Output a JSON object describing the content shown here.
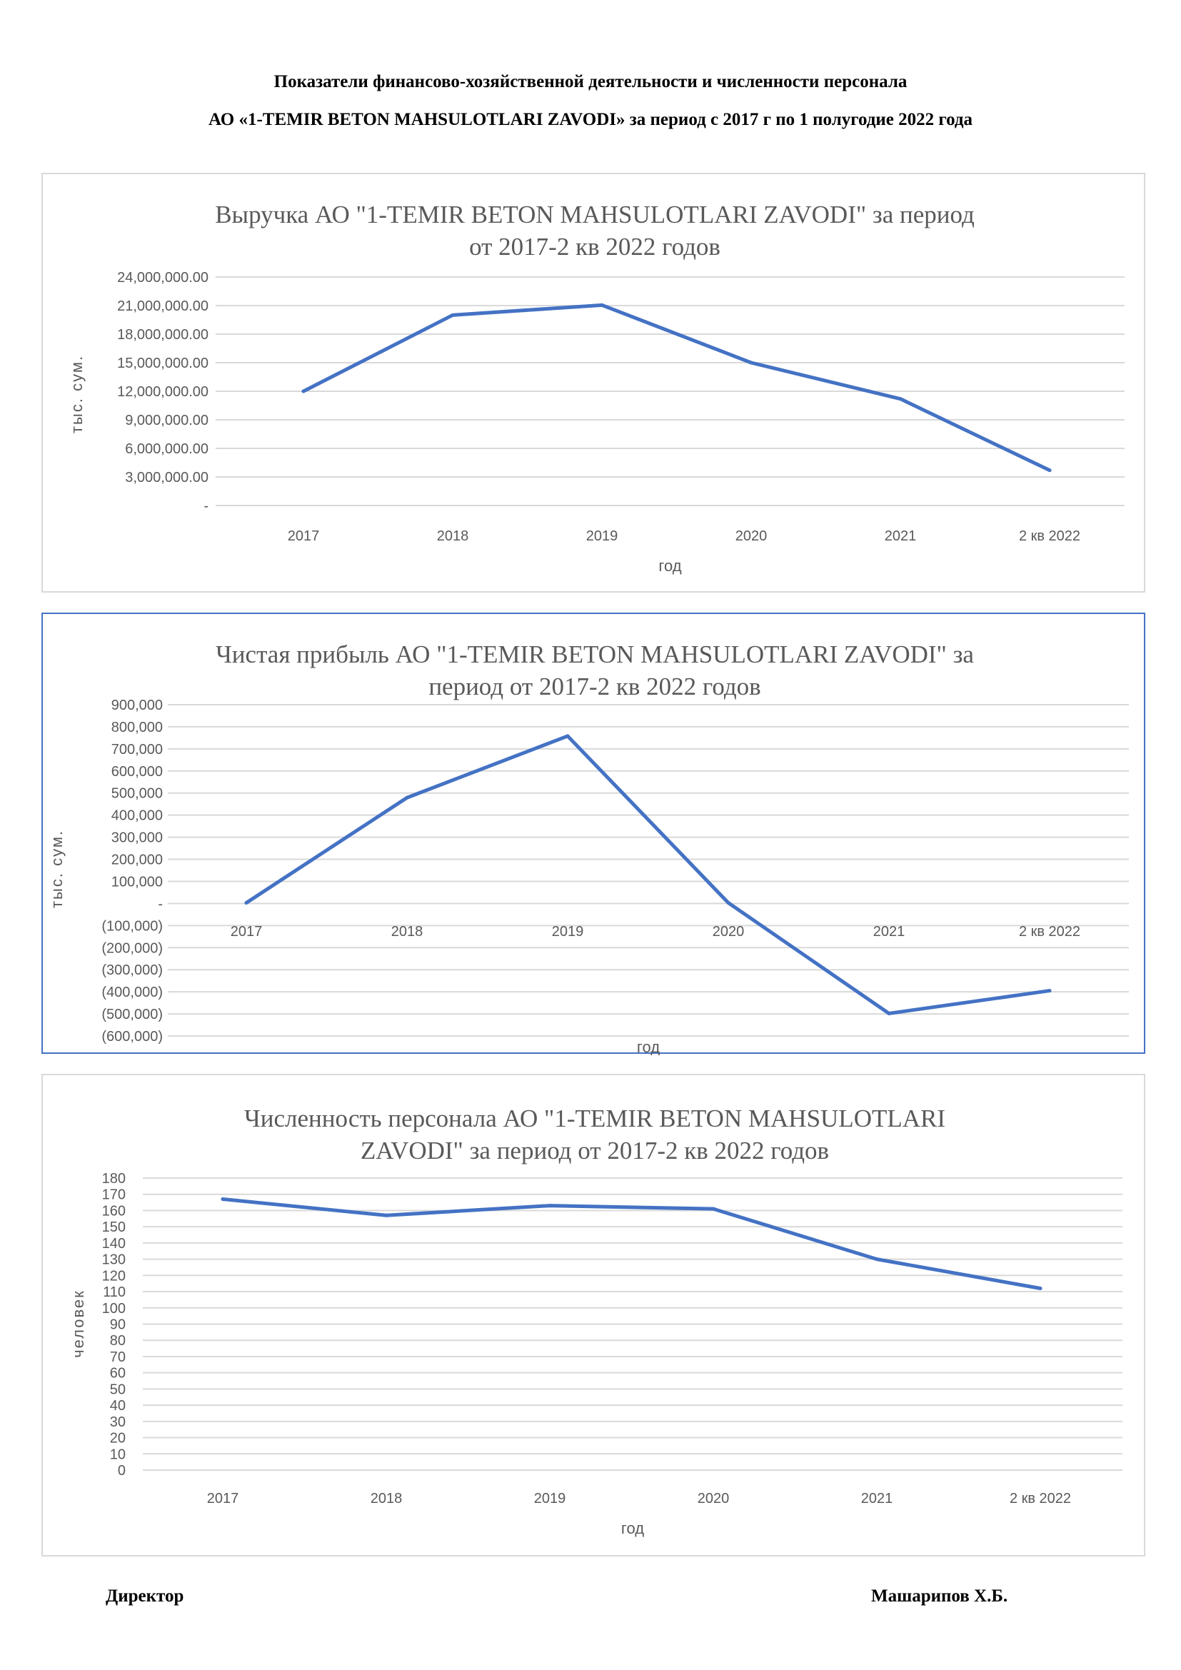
{
  "header": {
    "line1": "Показатели финансово-хозяйственной деятельности и численности персонала",
    "line2": "АО «1-TEMIR BETON MAHSULOTLARI ZAVODI» за период с 2017 г по 1 полугодие 2022 года"
  },
  "chart_data": [
    {
      "type": "line",
      "title": [
        "Выручка АО \"1-TEMIR BETON MAHSULOTLARI ZAVODI\" за период",
        "от 2017-2 кв 2022 годов"
      ],
      "xlabel": "год",
      "ylabel": "тыс. сум.",
      "categories": [
        "2017",
        "2018",
        "2019",
        "2020",
        "2021",
        "2 кв 2022"
      ],
      "series": [
        {
          "name": "Выручка",
          "values": [
            12000000,
            20000000,
            21050000,
            15000000,
            11200000,
            3700000
          ]
        }
      ],
      "ylim": [
        0,
        24000000
      ],
      "yticks": [
        0,
        3000000,
        6000000,
        9000000,
        12000000,
        15000000,
        18000000,
        21000000,
        24000000
      ],
      "ytick_labels": [
        "-",
        "3,000,000.00",
        "6,000,000.00",
        "9,000,000.00",
        "12,000,000.00",
        "15,000,000.00",
        "18,000,000.00",
        "21,000,000.00",
        "24,000,000.00"
      ],
      "grid": true,
      "line_color": "#4472c4"
    },
    {
      "type": "line",
      "title": [
        "Чистая прибыль АО \"1-TEMIR BETON MAHSULOTLARI ZAVODI\" за",
        "период от 2017-2 кв 2022 годов"
      ],
      "xlabel": "год",
      "ylabel": "тыс. сум.",
      "categories": [
        "2017",
        "2018",
        "2019",
        "2020",
        "2021",
        "2 кв 2022"
      ],
      "series": [
        {
          "name": "Чистая прибыль",
          "values": [
            3000,
            479000,
            758000,
            3000,
            -498000,
            -395000
          ]
        }
      ],
      "ylim": [
        -600000,
        900000
      ],
      "yticks": [
        -600000,
        -500000,
        -400000,
        -300000,
        -200000,
        -100000,
        0,
        100000,
        200000,
        300000,
        400000,
        500000,
        600000,
        700000,
        800000,
        900000
      ],
      "ytick_labels": [
        "(600,000)",
        "(500,000)",
        "(400,000)",
        "(300,000)",
        "(200,000)",
        "(100,000)",
        "-",
        "100,000",
        "200,000",
        "300,000",
        "400,000",
        "500,000",
        "600,000",
        "700,000",
        "800,000",
        "900,000"
      ],
      "grid": true,
      "line_color": "#4472c4"
    },
    {
      "type": "line",
      "title": [
        "Численность персонала АО \"1-TEMIR BETON MAHSULOTLARI",
        "ZAVODI\" за период от 2017-2 кв 2022 годов"
      ],
      "xlabel": "год",
      "ylabel": "человек",
      "categories": [
        "2017",
        "2018",
        "2019",
        "2020",
        "2021",
        "2 кв 2022"
      ],
      "series": [
        {
          "name": "Численность",
          "values": [
            167,
            157,
            163,
            161,
            130,
            112
          ]
        }
      ],
      "ylim": [
        0,
        180
      ],
      "yticks": [
        0,
        10,
        20,
        30,
        40,
        50,
        60,
        70,
        80,
        90,
        100,
        110,
        120,
        130,
        140,
        150,
        160,
        170,
        180
      ],
      "ytick_labels": [
        "0",
        "10",
        "20",
        "30",
        "40",
        "50",
        "60",
        "70",
        "80",
        "90",
        "100",
        "110",
        "120",
        "130",
        "140",
        "150",
        "160",
        "170",
        "180"
      ],
      "grid": true,
      "line_color": "#4472c4"
    }
  ],
  "footer": {
    "position": "Директор",
    "name": "Машарипов Х.Б."
  }
}
